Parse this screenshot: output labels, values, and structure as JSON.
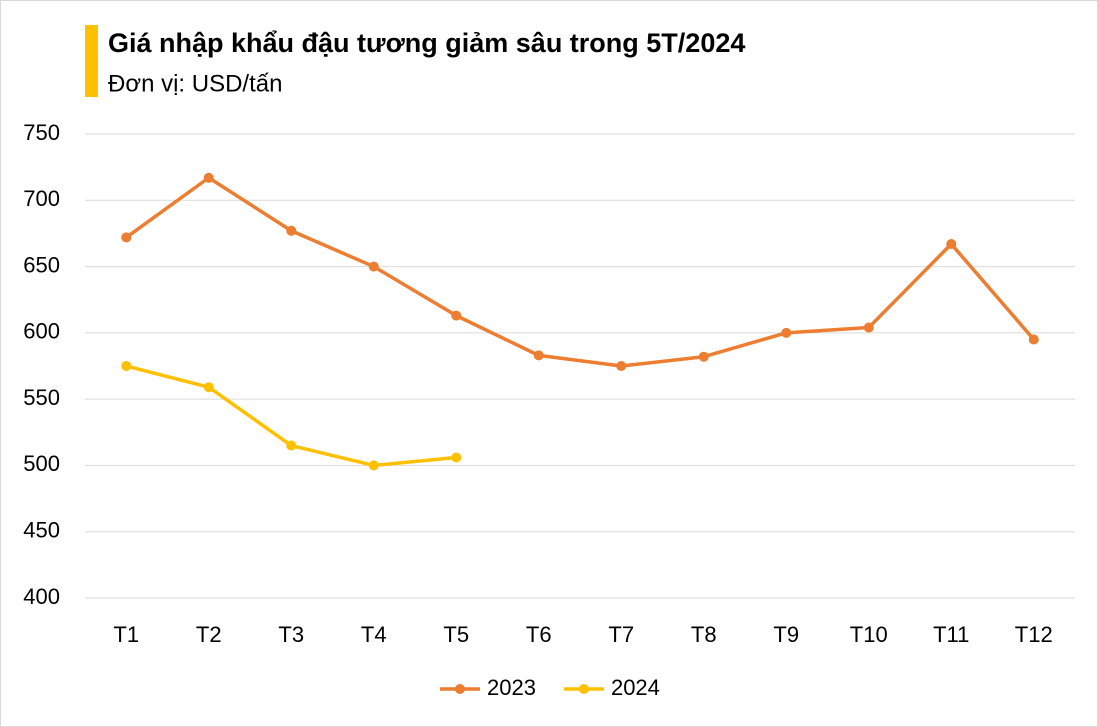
{
  "chart_data": {
    "type": "line",
    "title": "Giá nhập khẩu đậu tương giảm sâu trong 5T/2024",
    "subtitle": "Đơn vị: USD/tấn",
    "categories": [
      "T1",
      "T2",
      "T3",
      "T4",
      "T5",
      "T6",
      "T7",
      "T8",
      "T9",
      "T10",
      "T11",
      "T12"
    ],
    "series": [
      {
        "name": "2023",
        "color": "#ed7d31",
        "values": [
          672,
          717,
          677,
          650,
          613,
          583,
          575,
          582,
          600,
          604,
          667,
          595
        ]
      },
      {
        "name": "2024",
        "color": "#ffc000",
        "values": [
          575,
          559,
          515,
          500,
          506,
          null,
          null,
          null,
          null,
          null,
          null,
          null
        ]
      }
    ],
    "ylim": [
      400,
      750
    ],
    "yticks": [
      400,
      450,
      500,
      550,
      600,
      650,
      700,
      750
    ],
    "grid": true,
    "legend": "bottom",
    "accent_color": "#ffc000"
  }
}
